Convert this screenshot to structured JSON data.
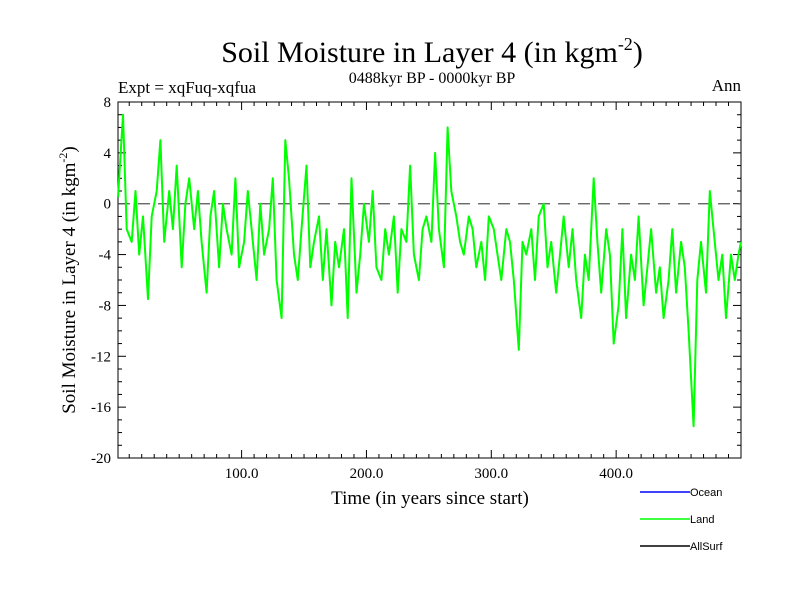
{
  "chart_data": {
    "type": "line",
    "title": "Soil Moisture in Layer 4 (in kgm",
    "title_sup": "-2",
    "title_close": ")",
    "subtitle": "0488kyr BP - 0000kyr BP",
    "left_label": "Expt = xqFuq-xqfua",
    "right_label": "Ann",
    "xlabel": "Time (in years since start)",
    "ylabel": "Soil Moisture in Layer 4 (in kgm",
    "ylabel_sup": "-2",
    "ylabel_close": ")",
    "xlim": [
      1,
      500
    ],
    "ylim": [
      -20,
      8
    ],
    "xticks": [
      100,
      200,
      300,
      400
    ],
    "xtick_labels": [
      "100.0",
      "200.0",
      "300.0",
      "400.0"
    ],
    "yticks": [
      8,
      4,
      0,
      -4,
      -8,
      -12,
      -16,
      -20
    ],
    "ytick_labels": [
      "8",
      "4",
      "0",
      "-4",
      "-8",
      "-12",
      "-16",
      "-20"
    ],
    "reference_line": {
      "y": 0,
      "style": "dashed"
    },
    "legend": [
      {
        "name": "Ocean",
        "color": "#0000ff"
      },
      {
        "name": "Land",
        "color": "#00ff00"
      },
      {
        "name": "AllSurf",
        "color": "#000000"
      }
    ],
    "series": [
      {
        "name": "Land",
        "color": "#00ff00",
        "x": [
          1,
          5,
          8,
          12,
          15,
          18,
          21,
          25,
          28,
          32,
          35,
          38,
          42,
          45,
          48,
          52,
          55,
          58,
          62,
          65,
          68,
          72,
          75,
          78,
          82,
          85,
          88,
          92,
          95,
          98,
          102,
          105,
          108,
          112,
          115,
          118,
          122,
          125,
          128,
          132,
          135,
          138,
          142,
          145,
          148,
          152,
          155,
          158,
          162,
          165,
          168,
          172,
          175,
          178,
          182,
          185,
          188,
          192,
          195,
          198,
          202,
          205,
          208,
          212,
          215,
          218,
          222,
          225,
          228,
          232,
          235,
          238,
          242,
          245,
          248,
          252,
          255,
          258,
          262,
          265,
          268,
          272,
          275,
          278,
          282,
          285,
          288,
          292,
          295,
          298,
          302,
          305,
          308,
          312,
          315,
          318,
          322,
          325,
          328,
          332,
          335,
          338,
          342,
          345,
          348,
          352,
          355,
          358,
          362,
          365,
          368,
          372,
          375,
          378,
          382,
          385,
          388,
          392,
          395,
          398,
          402,
          405,
          408,
          412,
          415,
          418,
          422,
          425,
          428,
          432,
          435,
          438,
          442,
          445,
          448,
          452,
          455,
          458,
          462,
          465,
          468,
          472,
          475,
          478,
          482,
          485,
          488,
          492,
          495,
          498,
          500
        ],
        "values": [
          0.5,
          7,
          -2,
          -3,
          1,
          -4,
          -1,
          -7.5,
          -1,
          1,
          5,
          -3,
          1,
          -2,
          3,
          -5,
          0,
          2,
          -2,
          1,
          -3,
          -7,
          -1,
          1,
          -5,
          0,
          -2,
          -4,
          2,
          -5,
          -3,
          1,
          -2,
          -6,
          0,
          -4,
          -2,
          2,
          -6,
          -9,
          5,
          2,
          -4,
          -6,
          -2,
          3,
          -5,
          -3,
          -1,
          -6,
          -2,
          -8,
          -3,
          -5,
          -2,
          -9,
          2,
          -7,
          -4,
          0,
          -3,
          1,
          -5,
          -6,
          -2,
          -4,
          -1,
          -7,
          -2,
          -3,
          3,
          -4,
          -6,
          -2,
          -1,
          -3,
          4,
          -2,
          -5,
          6,
          1,
          -1,
          -3,
          -4,
          -1,
          -2,
          -5,
          -3,
          -6,
          -1,
          -2,
          -4,
          -6,
          -2,
          -3,
          -6,
          -11.5,
          -3,
          -4,
          -2,
          -6,
          -1,
          0,
          -5,
          -3,
          -7,
          -4,
          -1,
          -5,
          -2,
          -6,
          -9,
          -4,
          -6,
          2,
          -3,
          -7,
          -2,
          -4,
          -11,
          -8,
          -2,
          -9,
          -4,
          -6,
          -1,
          -8,
          -5,
          -2,
          -7,
          -5,
          -9,
          -6,
          -2,
          -7,
          -3,
          -5,
          -10,
          -17.5,
          -6,
          -3,
          -7,
          1,
          -2,
          -6,
          -4,
          -9,
          -4,
          -6,
          -4,
          -3
        ]
      }
    ]
  }
}
